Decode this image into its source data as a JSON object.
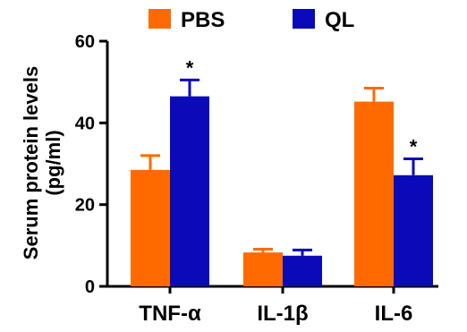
{
  "chart_data": {
    "type": "bar",
    "title": "",
    "xlabel": "",
    "ylabel": "Serum protein levels (pg/ml)",
    "ylabel_lines": [
      "Serum protein levels",
      "(pg/ml)"
    ],
    "ylim": [
      0,
      60
    ],
    "yticks": [
      "0",
      "20",
      "40",
      "60"
    ],
    "categories": [
      "TNF-α",
      "IL-1β",
      "IL-6"
    ],
    "legend_position": "top",
    "grid": false,
    "series": [
      {
        "name": "PBS",
        "color": "#ff6a00",
        "values": [
          28.5,
          8.3,
          45.2
        ],
        "errors": [
          3.5,
          0.8,
          3.3
        ],
        "significance": [
          "",
          "",
          ""
        ]
      },
      {
        "name": "QL",
        "color": "#0a0ab8",
        "values": [
          46.5,
          7.5,
          27.2
        ],
        "errors": [
          4.0,
          1.4,
          4.0
        ],
        "significance": [
          "*",
          "",
          "*"
        ]
      }
    ]
  }
}
